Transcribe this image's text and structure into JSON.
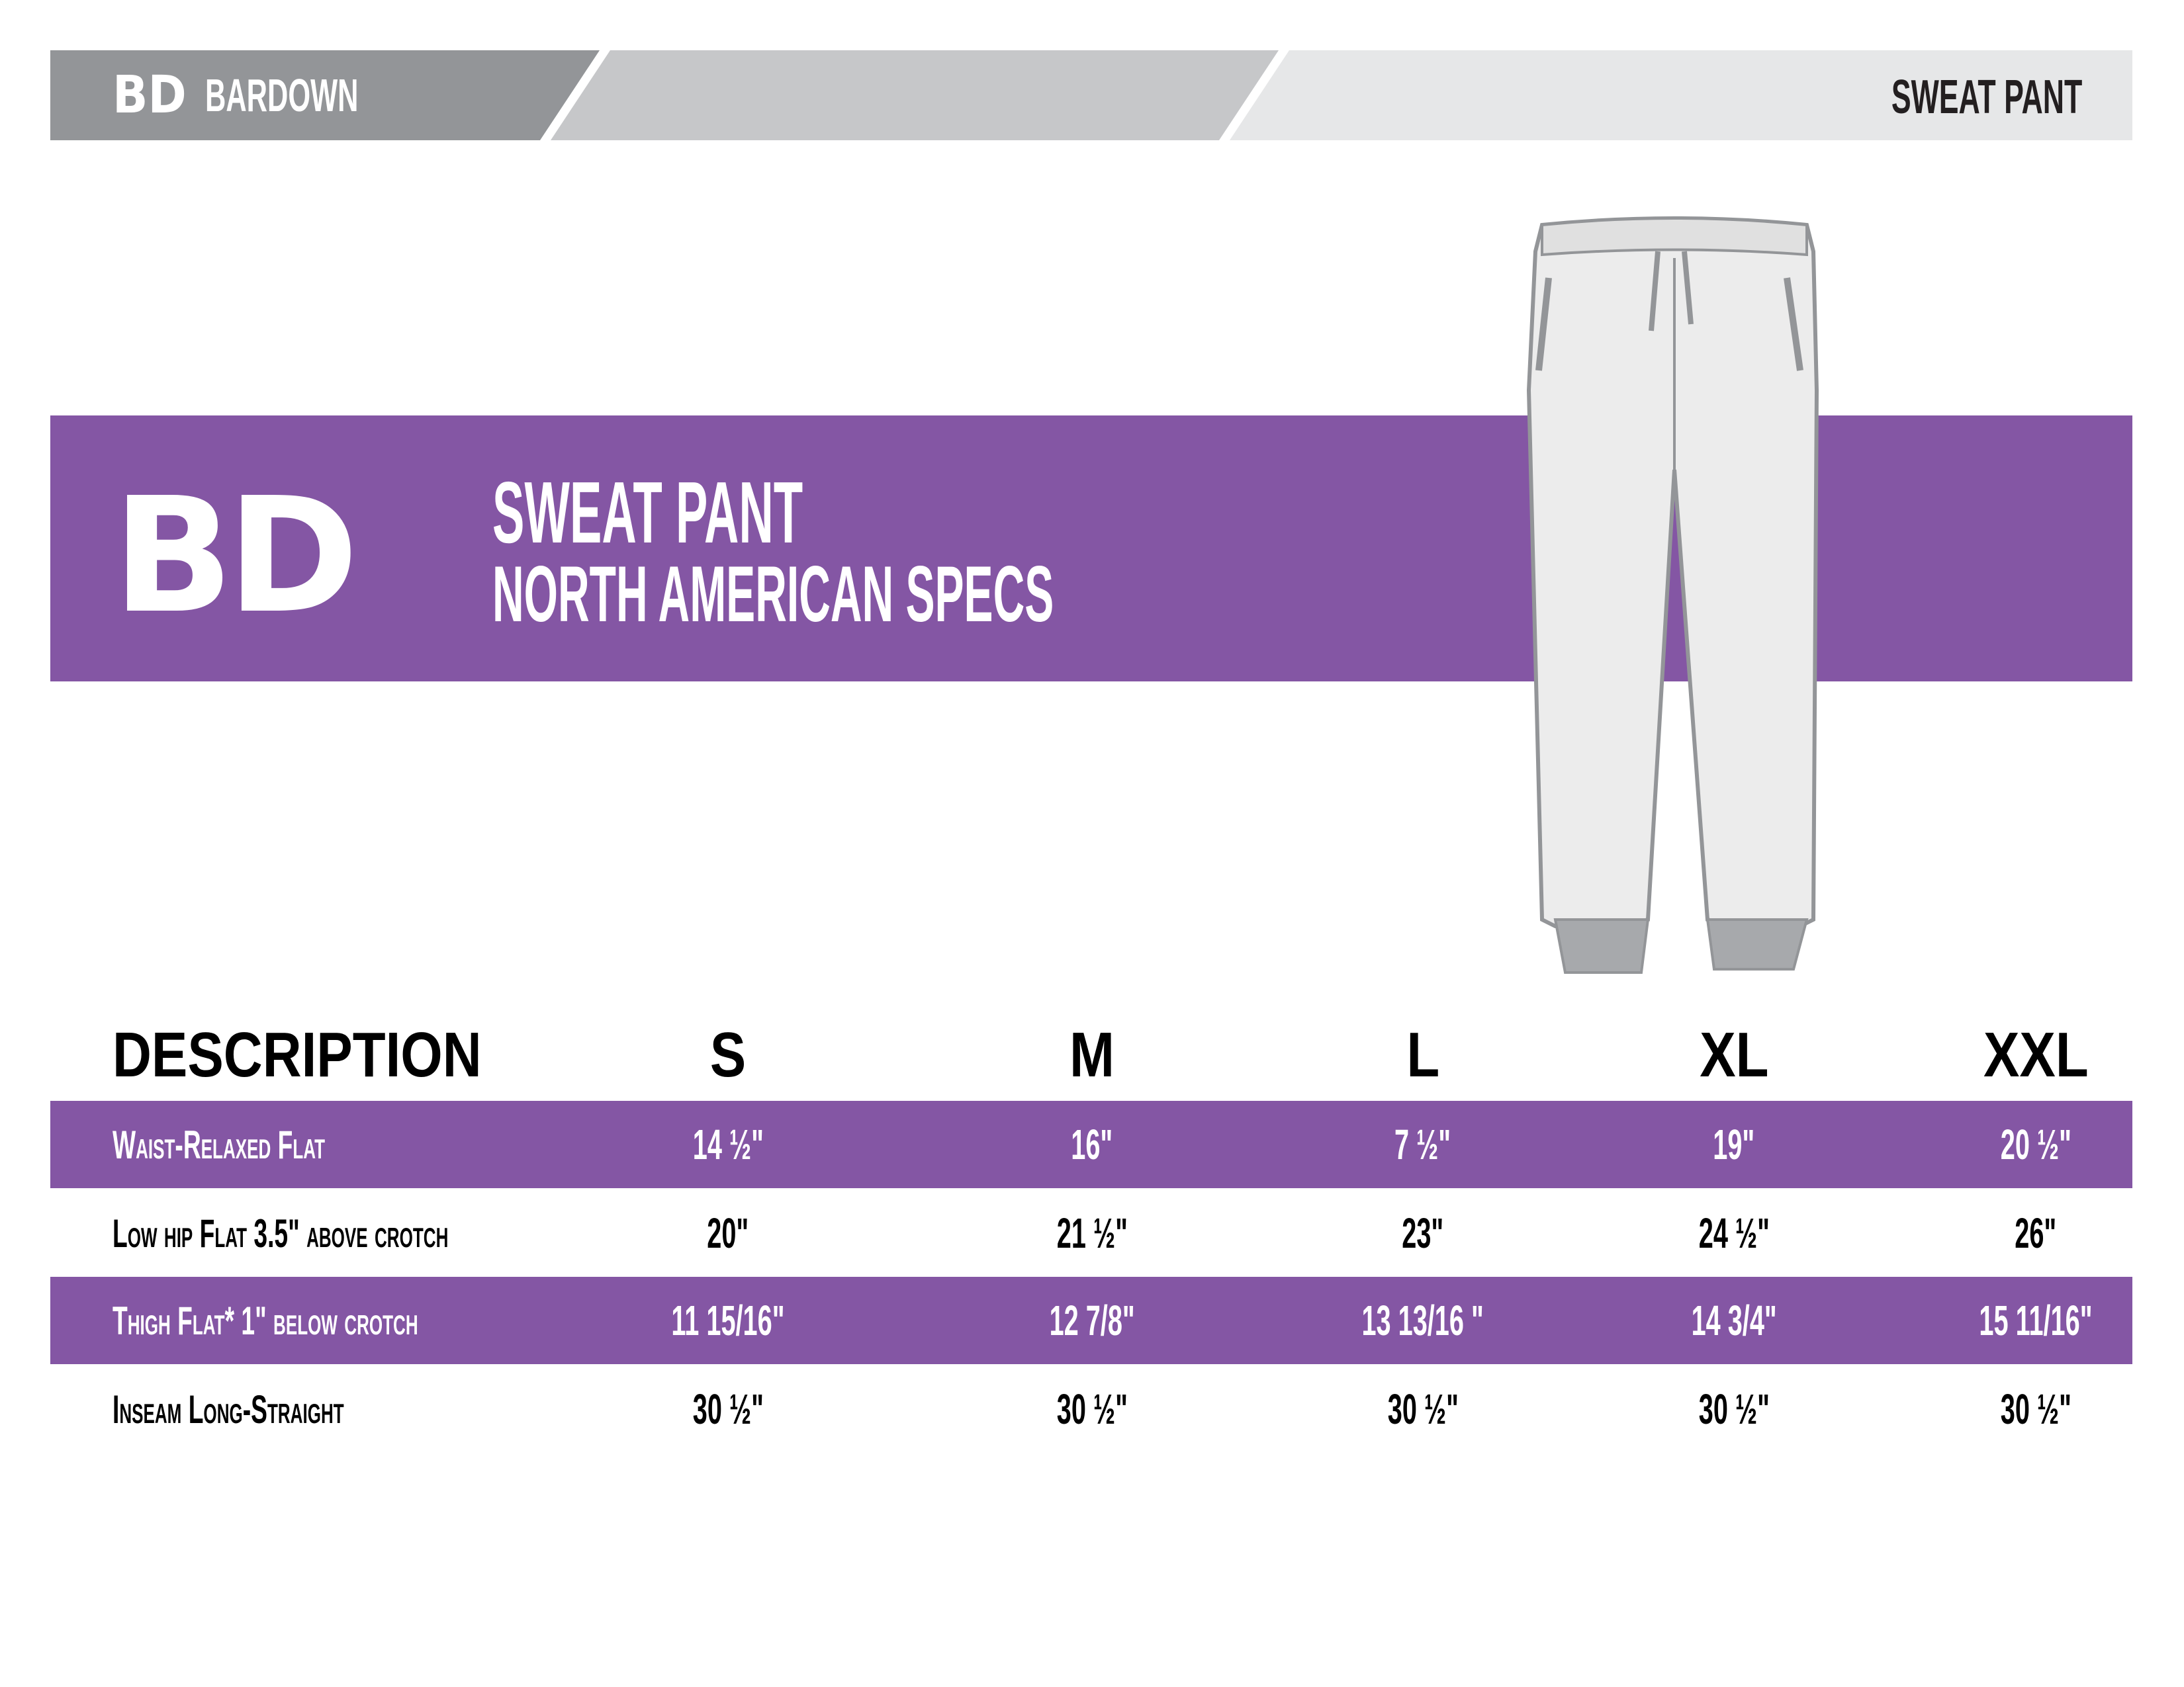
{
  "header": {
    "brand": "BARDOWN",
    "logo": "BD",
    "product": "SWEAT PANT"
  },
  "banner": {
    "logo": "BD",
    "title": "SWEAT PANT",
    "subtitle": "NORTH AMERICAN SPECS"
  },
  "colors": {
    "purple": "#8456a4",
    "dark_gray": "#939598",
    "mid_gray": "#c6c7c9",
    "light_gray": "#e6e7e8"
  },
  "table": {
    "headers": [
      "DESCRIPTION",
      "S",
      "M",
      "L",
      "XL",
      "XXL"
    ],
    "rows": [
      {
        "label": "Waist-Relaxed Flat",
        "values": [
          "14 ½\"",
          "16\"",
          "7 ½\"",
          "19\"",
          "20 ½\""
        ]
      },
      {
        "label": "Low hip Flat 3.5\" above crotch",
        "values": [
          "20\"",
          "21 ½\"",
          "23\"",
          "24 ½\"",
          "26\""
        ]
      },
      {
        "label": "Thigh Flat*  1\" below crotch",
        "values": [
          "11 15/16\"",
          "12 7/8\"",
          "13 13/16 \"",
          "14 3/4\"",
          "15 11/16\""
        ]
      },
      {
        "label": "Inseam Long-Straight",
        "values": [
          "30 ½\"",
          "30 ½\"",
          "30 ½\"",
          "30 ½\"",
          "30 ½\""
        ]
      }
    ]
  }
}
